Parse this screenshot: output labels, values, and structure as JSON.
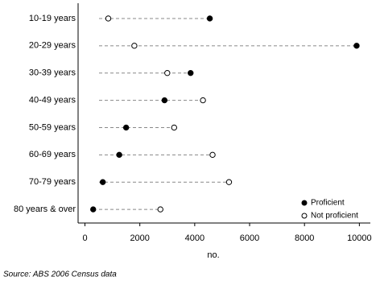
{
  "chart_data": {
    "type": "dot",
    "categories": [
      "10-19 years",
      "20-29 years",
      "30-39 years",
      "40-49 years",
      "50-59 years",
      "60-69 years",
      "70-79 years",
      "80 years & over"
    ],
    "series": [
      {
        "name": "Proficient",
        "color": "#000000",
        "values": [
          4550,
          9900,
          3850,
          2900,
          1500,
          1250,
          650,
          300
        ]
      },
      {
        "name": "Not proficient",
        "color": "#ffffff",
        "values": [
          850,
          1800,
          3000,
          4300,
          3250,
          4650,
          5250,
          2750
        ]
      }
    ],
    "xlim": [
      -250,
      10400
    ],
    "xticks": [
      0,
      2000,
      4000,
      6000,
      8000,
      10000
    ],
    "xlabel": "no.",
    "legend": "lower right",
    "source": "Source: ABS 2006 Census data"
  }
}
